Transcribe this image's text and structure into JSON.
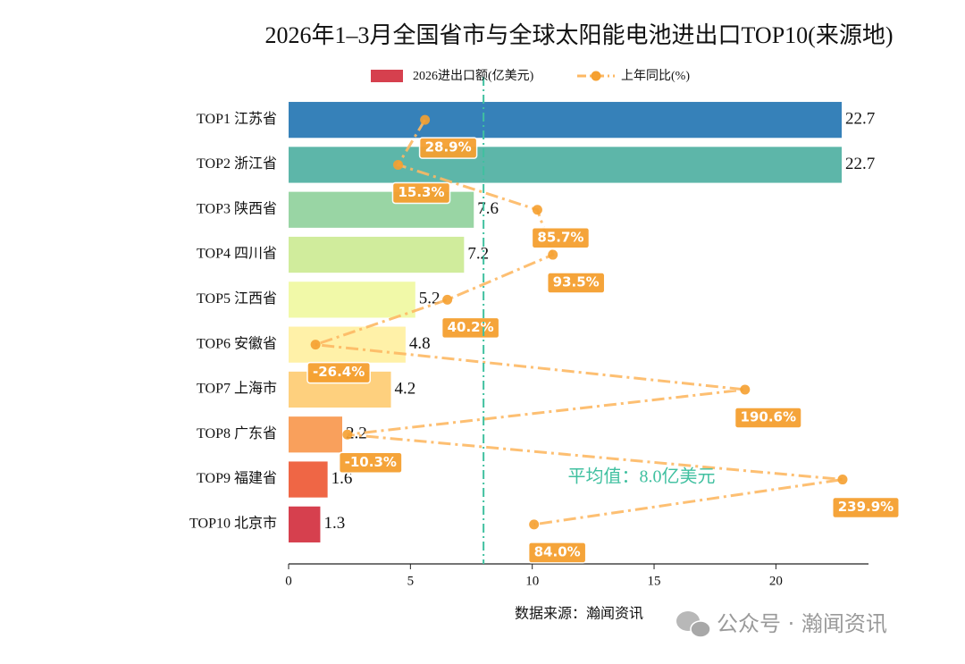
{
  "chart_data": {
    "type": "bar",
    "orientation": "horizontal",
    "title": "2026年1–3月全国省市与全球太阳能电池进出口TOP10(来源地)",
    "categories": [
      "TOP1 江苏省",
      "TOP2 浙江省",
      "TOP3 陕西省",
      "TOP4 四川省",
      "TOP5 江西省",
      "TOP6 安徽省",
      "TOP7 上海市",
      "TOP8 广东省",
      "TOP9 福建省",
      "TOP10 北京市"
    ],
    "series": [
      {
        "name": "2026进出口额(亿美元)",
        "color": "#d6404e",
        "colors": [
          "#3681b9",
          "#5db6a9",
          "#99d5a4",
          "#d0ec9c",
          "#f1f9a8",
          "#fff1a8",
          "#fed07e",
          "#f9a05c",
          "#ef6645",
          "#d6404e"
        ],
        "values": [
          22.7,
          22.7,
          7.6,
          7.2,
          5.2,
          4.8,
          4.2,
          2.2,
          1.6,
          1.3
        ]
      },
      {
        "name": "上年同比(%)",
        "type": "line",
        "axis": "x2",
        "color": "#f5a030",
        "values": [
          28.9,
          15.3,
          85.7,
          93.5,
          40.2,
          -26.4,
          190.6,
          -10.3,
          239.9,
          84.0
        ],
        "value_labels": [
          "28.9%",
          "15.3%",
          "85.7%",
          "93.5%",
          "40.2%",
          "-26.4%",
          "190.6%",
          "-10.3%",
          "239.9%",
          "84.0%"
        ]
      }
    ],
    "xlim": [
      0,
      23.8
    ],
    "xticks": [
      0,
      5,
      10,
      15,
      20
    ],
    "x2lim": [
      -40,
      253
    ],
    "mean_value": 8.0,
    "mean_label": "平均值：8.0亿美元",
    "mean_color": "#40c0a0",
    "source": "数据来源：瀚闻资讯",
    "watermark": "公众号 · 瀚闻资讯"
  }
}
